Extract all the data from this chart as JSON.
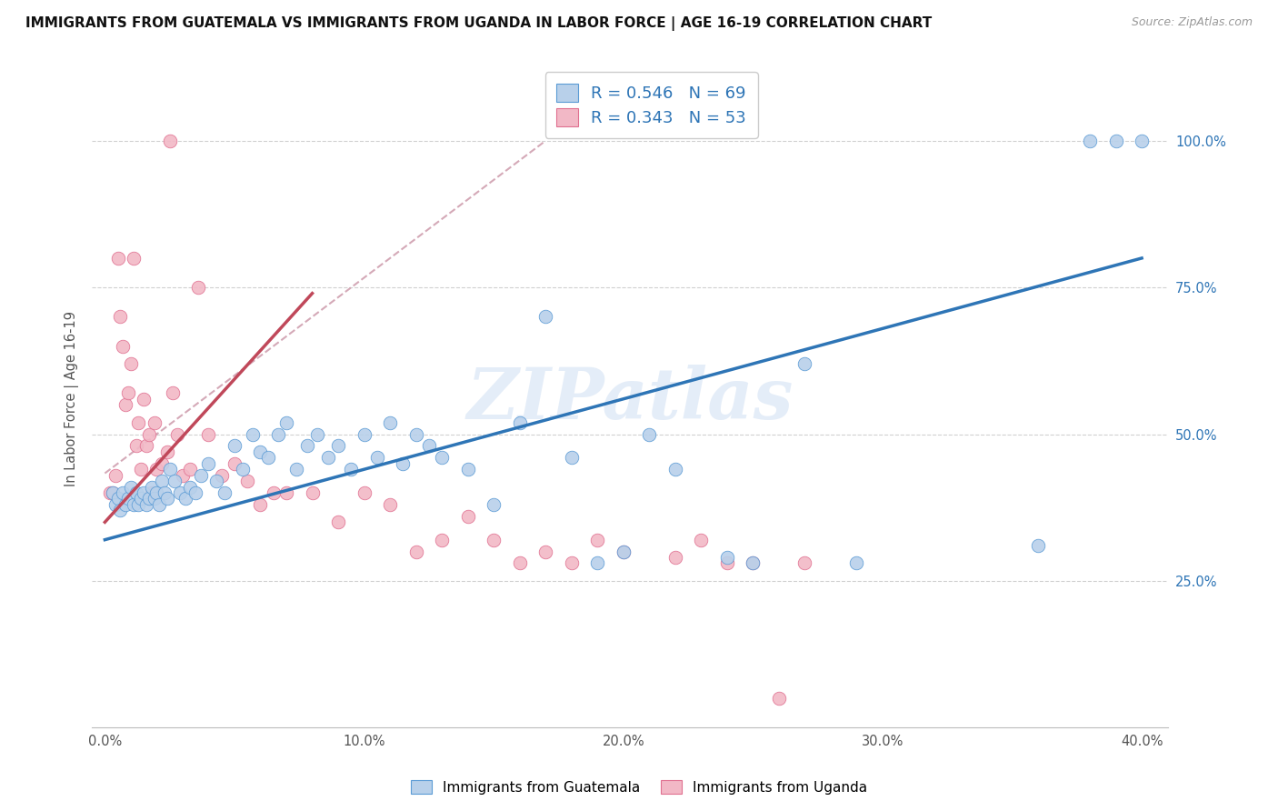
{
  "title": "IMMIGRANTS FROM GUATEMALA VS IMMIGRANTS FROM UGANDA IN LABOR FORCE | AGE 16-19 CORRELATION CHART",
  "source": "Source: ZipAtlas.com",
  "ylabel": "In Labor Force | Age 16-19",
  "x_tick_vals": [
    0.0,
    10.0,
    20.0,
    30.0,
    40.0
  ],
  "y_tick_vals": [
    25.0,
    50.0,
    75.0,
    100.0
  ],
  "xlim": [
    -0.5,
    41.0
  ],
  "ylim": [
    0.0,
    112.0
  ],
  "blue_R": "0.546",
  "blue_N": "69",
  "pink_R": "0.343",
  "pink_N": "53",
  "blue_color": "#b8d0ea",
  "blue_edge_color": "#5b9bd5",
  "blue_line_color": "#2e75b6",
  "pink_color": "#f2b8c6",
  "pink_edge_color": "#e07090",
  "pink_line_color": "#c0485a",
  "diagonal_color": "#d0a0b0",
  "watermark": "ZIPatlas",
  "legend_label_blue": "Immigrants from Guatemala",
  "legend_label_pink": "Immigrants from Uganda",
  "blue_line_x0": 0.0,
  "blue_line_y0": 32.0,
  "blue_line_x1": 40.0,
  "blue_line_y1": 80.0,
  "pink_line_x0": 0.0,
  "pink_line_y0": 35.0,
  "pink_line_x1": 8.0,
  "pink_line_y1": 74.0,
  "diag_x0": 5.0,
  "diag_y0": 60.0,
  "diag_x1": 17.0,
  "diag_y1": 100.0,
  "blue_points_x": [
    0.3,
    0.4,
    0.5,
    0.6,
    0.7,
    0.8,
    0.9,
    1.0,
    1.1,
    1.2,
    1.3,
    1.4,
    1.5,
    1.6,
    1.7,
    1.8,
    1.9,
    2.0,
    2.1,
    2.2,
    2.3,
    2.4,
    2.5,
    2.7,
    2.9,
    3.1,
    3.3,
    3.5,
    3.7,
    4.0,
    4.3,
    4.6,
    5.0,
    5.3,
    5.7,
    6.0,
    6.3,
    6.7,
    7.0,
    7.4,
    7.8,
    8.2,
    8.6,
    9.0,
    9.5,
    10.0,
    10.5,
    11.0,
    11.5,
    12.0,
    12.5,
    13.0,
    14.0,
    15.0,
    16.0,
    17.0,
    18.0,
    19.0,
    20.0,
    21.0,
    22.0,
    24.0,
    25.0,
    27.0,
    29.0,
    36.0,
    38.0,
    39.0,
    40.0
  ],
  "blue_points_y": [
    40.0,
    38.0,
    39.0,
    37.0,
    40.0,
    38.0,
    39.0,
    41.0,
    38.0,
    40.0,
    38.0,
    39.0,
    40.0,
    38.0,
    39.0,
    41.0,
    39.0,
    40.0,
    38.0,
    42.0,
    40.0,
    39.0,
    44.0,
    42.0,
    40.0,
    39.0,
    41.0,
    40.0,
    43.0,
    45.0,
    42.0,
    40.0,
    48.0,
    44.0,
    50.0,
    47.0,
    46.0,
    50.0,
    52.0,
    44.0,
    48.0,
    50.0,
    46.0,
    48.0,
    44.0,
    50.0,
    46.0,
    52.0,
    45.0,
    50.0,
    48.0,
    46.0,
    44.0,
    38.0,
    52.0,
    70.0,
    46.0,
    28.0,
    30.0,
    50.0,
    44.0,
    29.0,
    28.0,
    62.0,
    28.0,
    31.0,
    100.0,
    100.0,
    100.0
  ],
  "pink_points_x": [
    0.2,
    0.3,
    0.4,
    0.5,
    0.6,
    0.7,
    0.8,
    0.9,
    1.0,
    1.1,
    1.2,
    1.3,
    1.4,
    1.5,
    1.6,
    1.7,
    1.8,
    1.9,
    2.0,
    2.2,
    2.4,
    2.6,
    2.8,
    3.0,
    3.3,
    3.6,
    4.0,
    4.5,
    5.0,
    5.5,
    6.0,
    6.5,
    7.0,
    8.0,
    9.0,
    10.0,
    11.0,
    12.0,
    13.0,
    14.0,
    15.0,
    16.0,
    17.0,
    18.0,
    19.0,
    20.0,
    22.0,
    23.0,
    24.0,
    25.0,
    26.0,
    27.0,
    2.5
  ],
  "pink_points_y": [
    40.0,
    40.0,
    43.0,
    80.0,
    70.0,
    65.0,
    55.0,
    57.0,
    62.0,
    80.0,
    48.0,
    52.0,
    44.0,
    56.0,
    48.0,
    50.0,
    40.0,
    52.0,
    44.0,
    45.0,
    47.0,
    57.0,
    50.0,
    43.0,
    44.0,
    75.0,
    50.0,
    43.0,
    45.0,
    42.0,
    38.0,
    40.0,
    40.0,
    40.0,
    35.0,
    40.0,
    38.0,
    30.0,
    32.0,
    36.0,
    32.0,
    28.0,
    30.0,
    28.0,
    32.0,
    30.0,
    29.0,
    32.0,
    28.0,
    28.0,
    5.0,
    28.0,
    100.0
  ]
}
